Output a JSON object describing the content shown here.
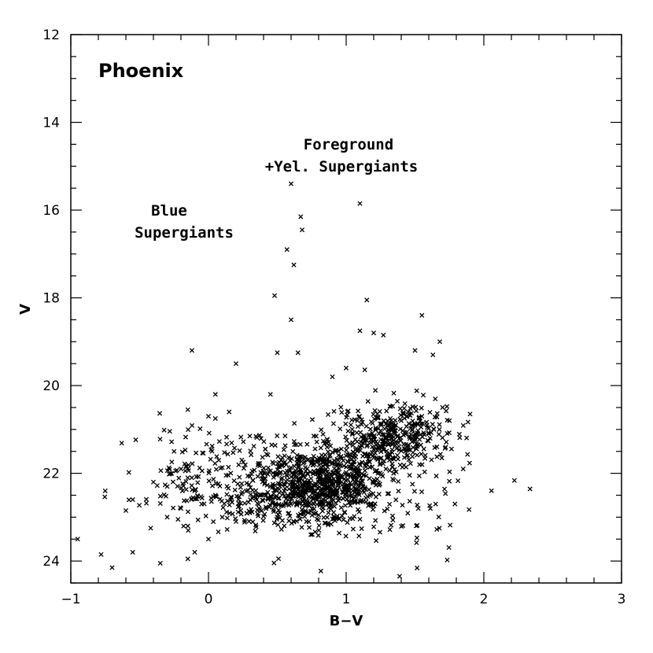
{
  "chart_data": {
    "type": "scatter",
    "title": "Phoenix",
    "xlabel": "B−V",
    "ylabel": "V",
    "xlim": [
      -1,
      3
    ],
    "ylim": [
      24.5,
      12
    ],
    "y_inverted": true,
    "x_ticks": [
      -1,
      0,
      1,
      2,
      3
    ],
    "x_tick_labels": [
      "−1",
      "0",
      "1",
      "2",
      "3"
    ],
    "y_ticks": [
      12,
      14,
      16,
      18,
      20,
      22,
      24
    ],
    "y_tick_labels": [
      "12",
      "14",
      "16",
      "18",
      "20",
      "22",
      "24"
    ],
    "grid": false,
    "marker": "x",
    "annotations": [
      {
        "lines": [
          "Foreground",
          "+Yel. Supergiants"
        ],
        "at": [
          1.05,
          15.25
        ]
      },
      {
        "lines": [
          "Blue",
          "Supergiants"
        ],
        "at": [
          -0.08,
          16.3
        ]
      }
    ],
    "series": [
      {
        "points": [
          [
            0.6,
            15.4
          ],
          [
            1.1,
            15.85
          ],
          [
            0.67,
            16.15
          ],
          [
            0.68,
            16.45
          ],
          [
            0.57,
            16.9
          ],
          [
            0.62,
            17.25
          ],
          [
            0.48,
            17.95
          ],
          [
            1.15,
            18.05
          ],
          [
            0.6,
            18.5
          ],
          [
            1.55,
            18.4
          ],
          [
            1.1,
            18.75
          ],
          [
            -0.12,
            19.2
          ],
          [
            0.5,
            19.25
          ],
          [
            0.65,
            19.25
          ],
          [
            0.2,
            19.5
          ],
          [
            1.2,
            18.8
          ],
          [
            1.27,
            18.85
          ],
          [
            1.68,
            19.0
          ],
          [
            1.5,
            19.2
          ],
          [
            1.63,
            19.3
          ],
          [
            0.45,
            20.2
          ],
          [
            0.9,
            19.8
          ],
          [
            1.0,
            19.6
          ],
          [
            0.05,
            20.2
          ],
          [
            0.0,
            20.7
          ],
          [
            0.05,
            20.75
          ],
          [
            -0.15,
            20.55
          ],
          [
            0.15,
            20.6
          ],
          [
            0.3,
            21.15
          ],
          [
            -0.25,
            21.5
          ],
          [
            -0.2,
            21.9
          ],
          [
            -0.4,
            22.2
          ],
          [
            -0.3,
            22.3
          ],
          [
            -0.15,
            22.1
          ],
          [
            -0.1,
            22.4
          ],
          [
            -0.05,
            22.7
          ],
          [
            0.05,
            22.5
          ],
          [
            -0.2,
            22.8
          ],
          [
            -0.15,
            23.2
          ],
          [
            -0.3,
            23.0
          ],
          [
            -0.42,
            23.25
          ],
          [
            -0.55,
            22.6
          ],
          [
            -0.75,
            22.4
          ],
          [
            -0.6,
            22.85
          ],
          [
            -0.95,
            23.5
          ],
          [
            -0.78,
            23.85
          ],
          [
            -0.7,
            24.15
          ],
          [
            -0.55,
            23.8
          ],
          [
            -0.35,
            24.05
          ],
          [
            -0.15,
            23.95
          ],
          [
            -0.1,
            23.8
          ],
          [
            0.0,
            23.5
          ],
          [
            0.1,
            23.0
          ],
          [
            0.2,
            23.1
          ],
          [
            0.3,
            22.9
          ],
          [
            0.35,
            22.6
          ],
          [
            0.45,
            22.3
          ],
          [
            0.5,
            22.0
          ],
          [
            0.55,
            22.4
          ],
          [
            0.6,
            22.2
          ],
          [
            0.65,
            22.5
          ],
          [
            0.7,
            22.1
          ],
          [
            0.75,
            22.3
          ],
          [
            0.8,
            22.0
          ],
          [
            0.85,
            21.8
          ],
          [
            0.9,
            22.2
          ],
          [
            0.95,
            21.9
          ],
          [
            1.0,
            21.6
          ],
          [
            1.05,
            21.8
          ],
          [
            1.1,
            21.4
          ],
          [
            1.15,
            21.6
          ],
          [
            1.2,
            21.2
          ],
          [
            1.25,
            21.4
          ],
          [
            1.3,
            20.9
          ],
          [
            1.35,
            21.1
          ],
          [
            1.4,
            20.8
          ],
          [
            1.45,
            20.6
          ],
          [
            1.5,
            20.9
          ],
          [
            1.55,
            20.7
          ],
          [
            1.6,
            21.1
          ],
          [
            1.7,
            20.5
          ],
          [
            1.75,
            20.8
          ],
          [
            1.9,
            20.65
          ],
          [
            1.85,
            21.9
          ],
          [
            1.65,
            22.7
          ]
        ],
        "clusters": [
          {
            "cx": 0.85,
            "cy": 22.15,
            "sx": 0.22,
            "sy": 0.38,
            "n": 520
          },
          {
            "cx": 1.25,
            "cy": 21.25,
            "sx": 0.2,
            "sy": 0.4,
            "n": 330
          },
          {
            "cx": 0.55,
            "cy": 22.55,
            "sx": 0.3,
            "sy": 0.35,
            "n": 230
          },
          {
            "cx": -0.1,
            "cy": 22.1,
            "sx": 0.2,
            "sy": 0.5,
            "n": 90
          },
          {
            "cx": 1.0,
            "cy": 22.6,
            "sx": 0.45,
            "sy": 0.6,
            "n": 160
          },
          {
            "cx": 1.5,
            "cy": 20.9,
            "sx": 0.17,
            "sy": 0.35,
            "n": 70
          },
          {
            "cx": 0.3,
            "cy": 21.9,
            "sx": 0.35,
            "sy": 0.5,
            "n": 70
          }
        ]
      }
    ]
  }
}
